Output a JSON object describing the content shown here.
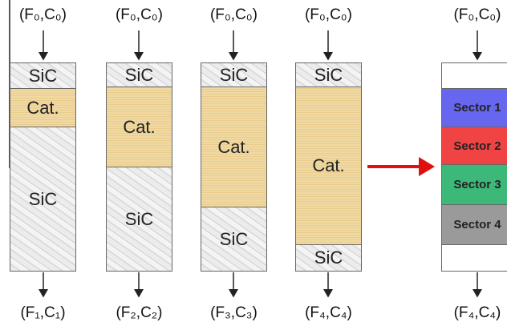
{
  "columns": [
    {
      "inlet": "(F₀,C₀)",
      "outlet": "(F₁,C₁)",
      "segments": [
        "SiC",
        "Cat.",
        "SiC"
      ]
    },
    {
      "inlet": "(F₀,C₀)",
      "outlet": "(F₂,C₂)",
      "segments": [
        "SiC",
        "Cat.",
        "SiC"
      ]
    },
    {
      "inlet": "(F₀,C₀)",
      "outlet": "(F₃,C₃)",
      "segments": [
        "SiC",
        "Cat.",
        "SiC"
      ]
    },
    {
      "inlet": "(F₀,C₀)",
      "outlet": "(F₄,C₄)",
      "segments": [
        "SiC",
        "Cat.",
        "SiC"
      ]
    }
  ],
  "sector_column": {
    "inlet": "(F₀,C₀)",
    "outlet": "(F₄,C₄)",
    "sectors": [
      "Sector 1",
      "Sector 2",
      "Sector 3",
      "Sector 4"
    ]
  }
}
